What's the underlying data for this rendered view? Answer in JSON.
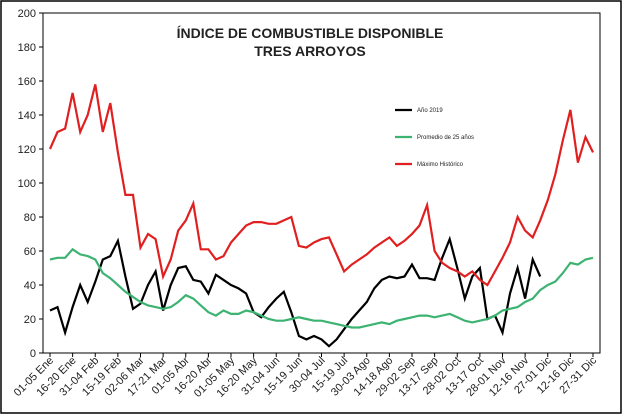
{
  "chart_data": {
    "type": "line",
    "title": [
      "ÍNDICE DE COMBUSTIBLE DISPONIBLE",
      "TRES ARROYOS"
    ],
    "categories": [
      "01-05 Ene",
      null,
      null,
      "16-20 Ene",
      null,
      null,
      "31-04 Feb",
      null,
      null,
      "15-19 Feb",
      null,
      null,
      "02-06 Mar",
      null,
      null,
      "17-21 Mar",
      null,
      null,
      "01-05 Abr",
      null,
      null,
      "16-20 Abr",
      null,
      null,
      "01-05 May",
      null,
      null,
      "16-20 May",
      null,
      null,
      "31-04 Jun",
      null,
      null,
      "15-19 Jun",
      null,
      null,
      "30-04 Jul",
      null,
      null,
      "15-19 Jul",
      null,
      null,
      "30-03 Ago",
      null,
      null,
      "14-18 Ago",
      null,
      null,
      "29-02 Sep",
      null,
      null,
      "13-17 Sep",
      null,
      null,
      "28-02 Oct",
      null,
      null,
      "13-17 Oct",
      null,
      null,
      "28-01 Nov",
      null,
      null,
      "12-16 Nov",
      null,
      null,
      "27-01 Dic",
      null,
      null,
      "12-16 Dic",
      null,
      null,
      "27-31 Dic"
    ],
    "series": [
      {
        "name": "Año 2019",
        "color": "#000000",
        "values": [
          25,
          27,
          12,
          27,
          40,
          30,
          42,
          55,
          57,
          66,
          45,
          26,
          29,
          40,
          48,
          25,
          40,
          50,
          51,
          43,
          42,
          35,
          46,
          43,
          40,
          38,
          35,
          24,
          21,
          27,
          32,
          36,
          24,
          10,
          8,
          10,
          8,
          4,
          8,
          14,
          20,
          25,
          30,
          38,
          43,
          45,
          44,
          45,
          52,
          44,
          44,
          43,
          56,
          67,
          50,
          32,
          45,
          50,
          20,
          22,
          12,
          35,
          50,
          32,
          55,
          45,
          null,
          null,
          null,
          null,
          null,
          null,
          null
        ]
      },
      {
        "name": "Promedio de 25 años",
        "color": "#3cb371",
        "values": [
          55,
          56,
          56,
          61,
          58,
          57,
          55,
          47,
          44,
          40,
          36,
          33,
          30,
          28,
          27,
          26,
          27,
          30,
          34,
          32,
          28,
          24,
          22,
          25,
          23,
          23,
          25,
          24,
          22,
          20,
          19,
          19,
          20,
          21,
          20,
          19,
          19,
          18,
          17,
          16,
          15,
          15,
          16,
          17,
          18,
          17,
          19,
          20,
          21,
          22,
          22,
          21,
          22,
          23,
          21,
          19,
          18,
          19,
          20,
          22,
          25,
          26,
          27,
          30,
          32,
          37,
          40,
          42,
          47,
          53,
          52,
          55,
          56
        ]
      },
      {
        "name": "Máximo Histórico",
        "color": "#e02020",
        "values": [
          120,
          130,
          132,
          153,
          130,
          140,
          158,
          130,
          147,
          118,
          93,
          93,
          62,
          70,
          67,
          45,
          55,
          72,
          78,
          88,
          61,
          61,
          55,
          57,
          65,
          70,
          75,
          77,
          77,
          76,
          76,
          78,
          80,
          63,
          62,
          65,
          67,
          68,
          58,
          48,
          52,
          55,
          58,
          62,
          65,
          68,
          63,
          66,
          70,
          75,
          87,
          60,
          53,
          50,
          48,
          45,
          48,
          43,
          40,
          48,
          56,
          65,
          80,
          72,
          68,
          78,
          90,
          105,
          125,
          143,
          112,
          127,
          118
        ]
      }
    ],
    "ylim": [
      0,
      200
    ],
    "yticks": [
      0,
      20,
      40,
      60,
      80,
      100,
      120,
      140,
      160,
      180,
      200
    ],
    "grid": false,
    "legend": "right"
  }
}
